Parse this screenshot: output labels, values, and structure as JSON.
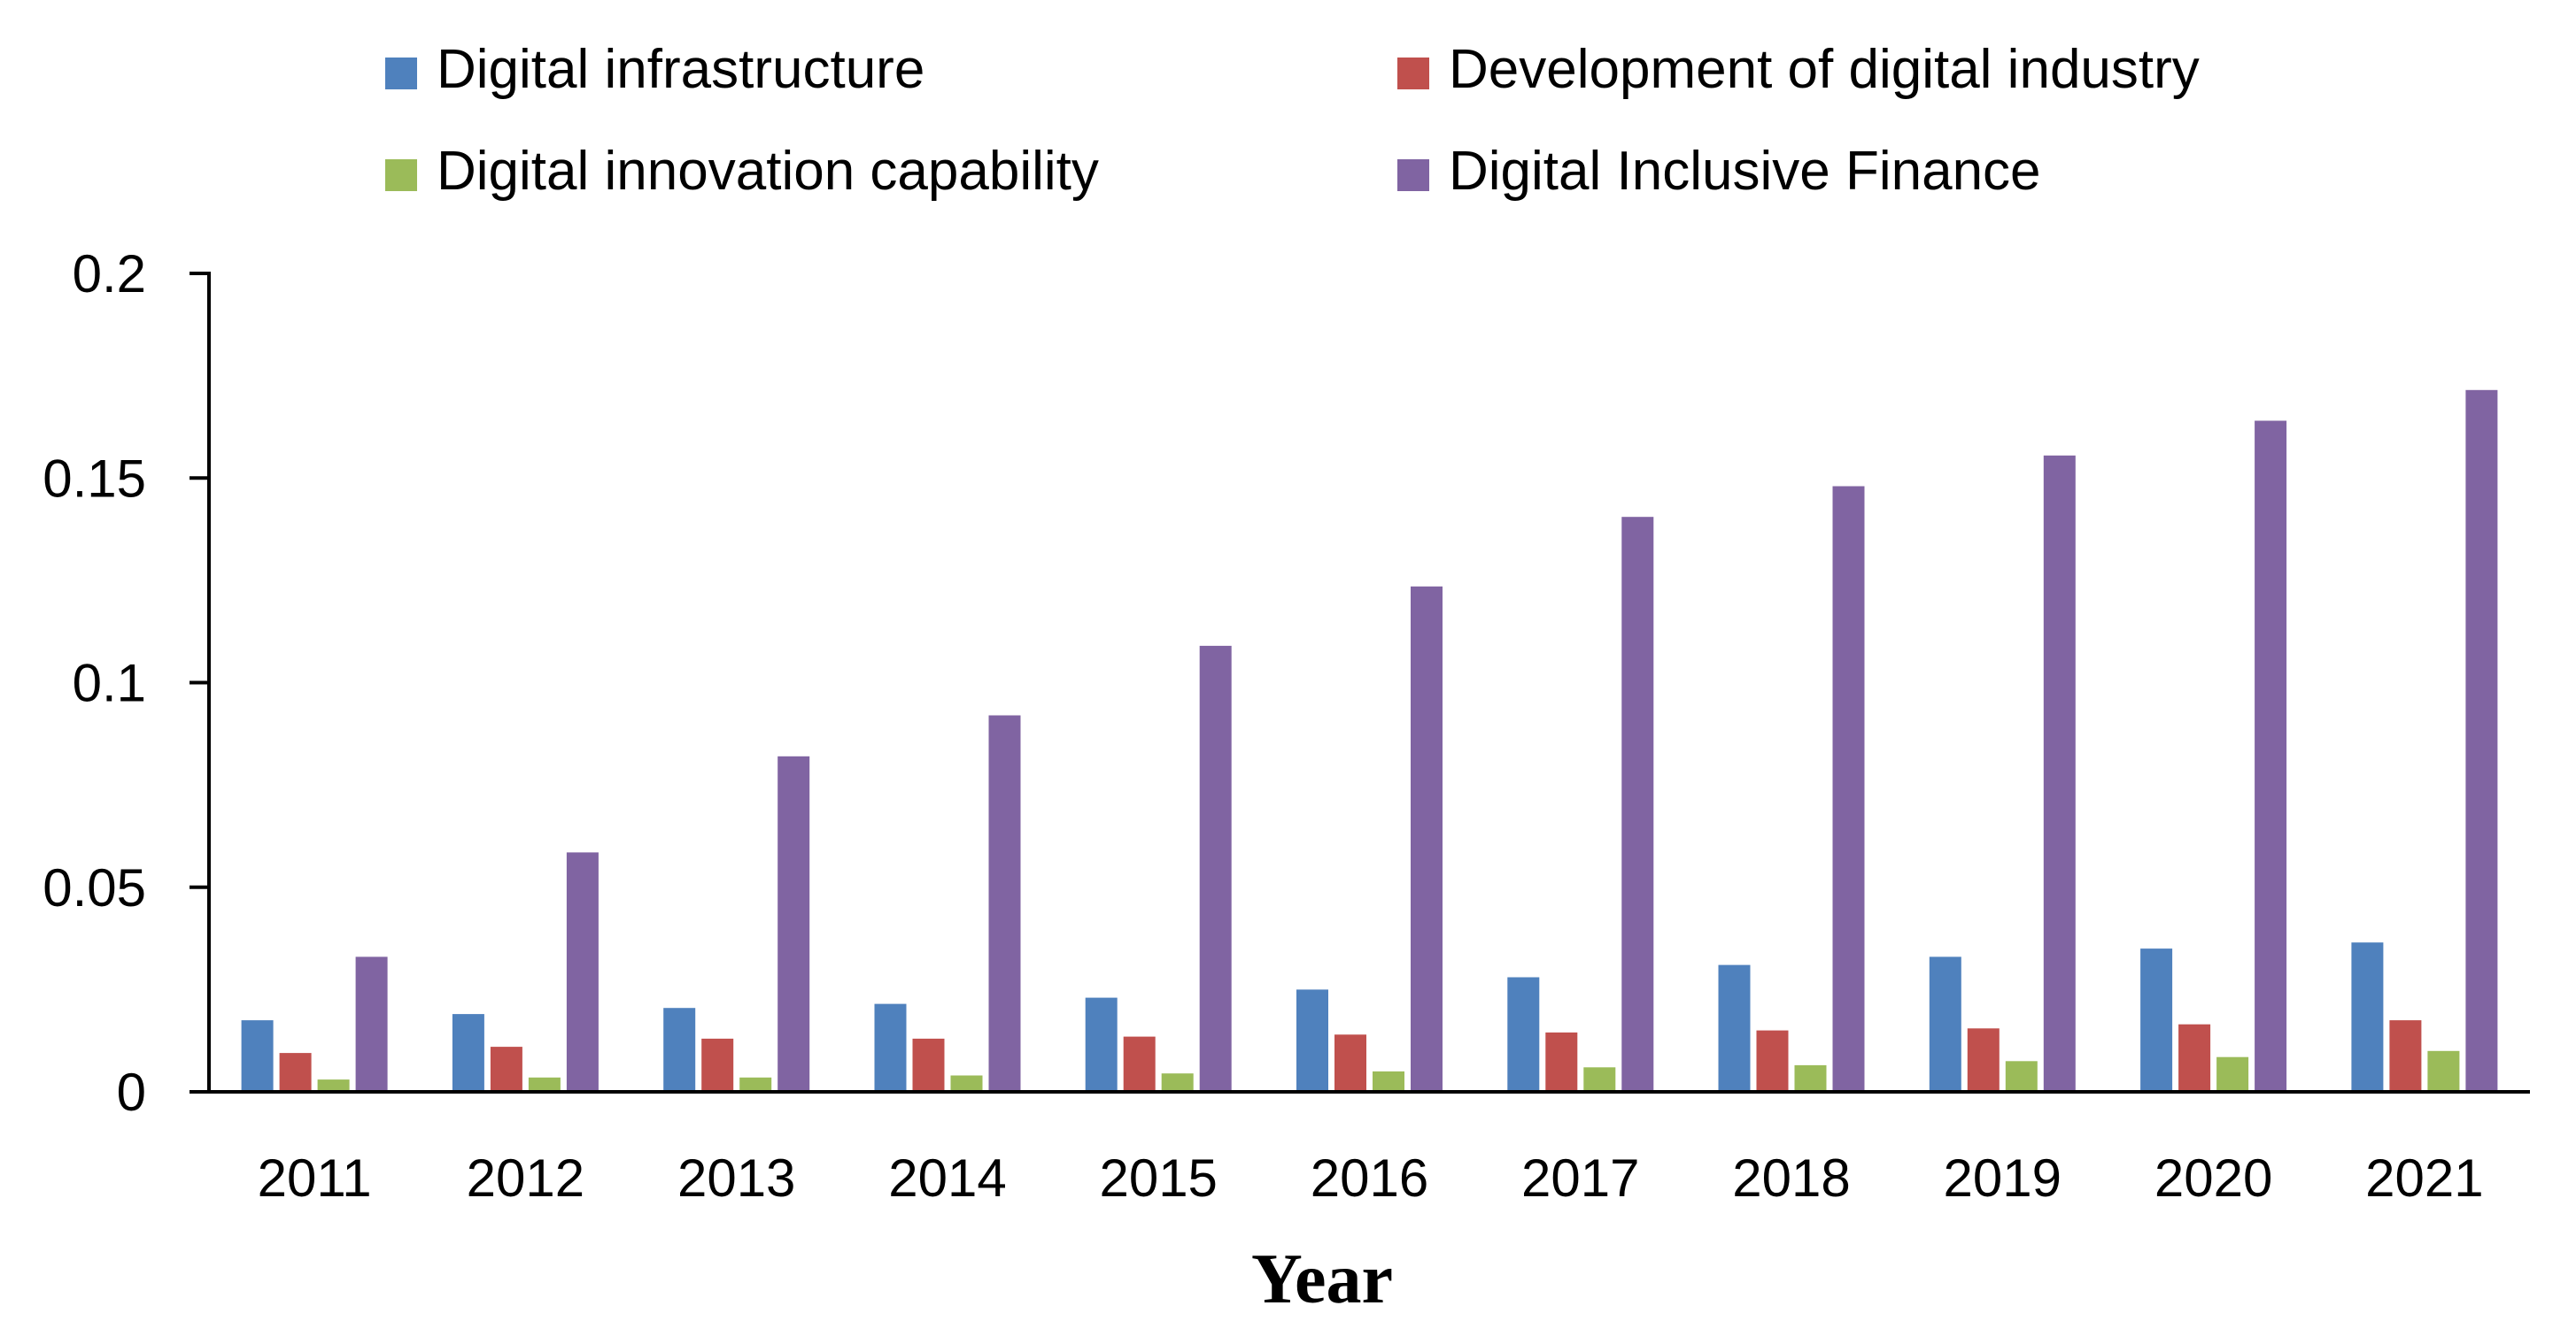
{
  "chart_data": {
    "type": "bar",
    "title": "",
    "xlabel": "Year",
    "ylabel": "",
    "ylim": [
      0,
      0.2
    ],
    "yticks": [
      0,
      0.05,
      0.1,
      0.15,
      0.2
    ],
    "ytick_labels": [
      "0",
      "0.05",
      "0.1",
      "0.15",
      "0.2"
    ],
    "grid": false,
    "legend_position": "top",
    "categories": [
      "2011",
      "2012",
      "2013",
      "2014",
      "2015",
      "2016",
      "2017",
      "2018",
      "2019",
      "2020",
      "2021"
    ],
    "series": [
      {
        "name": "Digital infrastructure",
        "color": "#4F81BD",
        "values": [
          0.0175,
          0.019,
          0.0205,
          0.0215,
          0.023,
          0.025,
          0.028,
          0.031,
          0.033,
          0.035,
          0.0365
        ]
      },
      {
        "name": "Development of digital industry",
        "color": "#C0504D",
        "values": [
          0.0095,
          0.011,
          0.013,
          0.013,
          0.0135,
          0.014,
          0.0145,
          0.015,
          0.0155,
          0.0165,
          0.0175
        ]
      },
      {
        "name": "Digital innovation capability",
        "color": "#9BBB59",
        "values": [
          0.003,
          0.0035,
          0.0035,
          0.004,
          0.0045,
          0.005,
          0.006,
          0.0065,
          0.0075,
          0.0085,
          0.01
        ]
      },
      {
        "name": "Digital Inclusive Finance",
        "color": "#8064A2",
        "values": [
          0.033,
          0.0585,
          0.082,
          0.092,
          0.109,
          0.1235,
          0.1405,
          0.148,
          0.1555,
          0.164,
          0.1715
        ]
      }
    ]
  }
}
